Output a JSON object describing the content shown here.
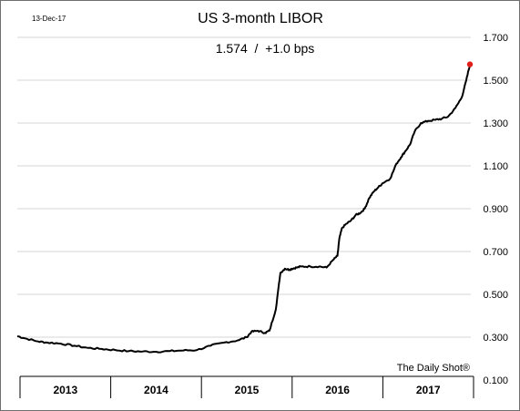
{
  "date_label": "13-Dec-17",
  "title": "US 3-month LIBOR",
  "subtitle": "1.574  /  +1.0 bps",
  "source": "The Daily Shot®",
  "chart_data": {
    "type": "line",
    "title": "US 3-month LIBOR",
    "xlabel": "",
    "ylabel": "",
    "x_categories": [
      "2013",
      "2014",
      "2015",
      "2016",
      "2017"
    ],
    "ylim": [
      0.1,
      1.7
    ],
    "y_ticks": [
      "0.100",
      "0.300",
      "0.500",
      "0.700",
      "0.900",
      "1.100",
      "1.300",
      "1.500",
      "1.700"
    ],
    "grid": "horizontal",
    "line_color": "#000000",
    "last_point_color": "#e0201b",
    "series": [
      {
        "x": [
          2012.97,
          2013.05,
          2013.2,
          2013.3,
          2013.45,
          2013.6,
          2013.75,
          2013.9,
          2014.05,
          2014.2,
          2014.35,
          2014.5,
          2014.65,
          2014.8,
          2014.95,
          2015.1,
          2015.25,
          2015.4,
          2015.5,
          2015.55,
          2015.62,
          2015.7,
          2015.75,
          2015.82,
          2015.87,
          2015.92,
          2015.97,
          2016.0,
          2016.05,
          2016.1,
          2016.2,
          2016.3,
          2016.38,
          2016.45,
          2016.5,
          2016.52,
          2016.55,
          2016.6,
          2016.65,
          2016.7,
          2016.75,
          2016.8,
          2016.85,
          2016.9,
          2016.95,
          2017.0,
          2017.08,
          2017.15,
          2017.2,
          2017.25,
          2017.3,
          2017.35,
          2017.42,
          2017.5,
          2017.58,
          2017.65,
          2017.72,
          2017.8,
          2017.87,
          2017.92,
          2017.96
        ],
        "y": [
          0.305,
          0.295,
          0.28,
          0.275,
          0.27,
          0.26,
          0.25,
          0.245,
          0.24,
          0.235,
          0.233,
          0.232,
          0.235,
          0.238,
          0.24,
          0.26,
          0.275,
          0.285,
          0.3,
          0.325,
          0.33,
          0.32,
          0.33,
          0.43,
          0.6,
          0.62,
          0.615,
          0.62,
          0.625,
          0.63,
          0.63,
          0.63,
          0.625,
          0.66,
          0.68,
          0.76,
          0.81,
          0.83,
          0.845,
          0.87,
          0.88,
          0.9,
          0.95,
          0.98,
          1.0,
          1.02,
          1.04,
          1.11,
          1.14,
          1.17,
          1.2,
          1.26,
          1.3,
          1.31,
          1.315,
          1.32,
          1.33,
          1.37,
          1.42,
          1.5,
          1.574
        ]
      }
    ]
  }
}
